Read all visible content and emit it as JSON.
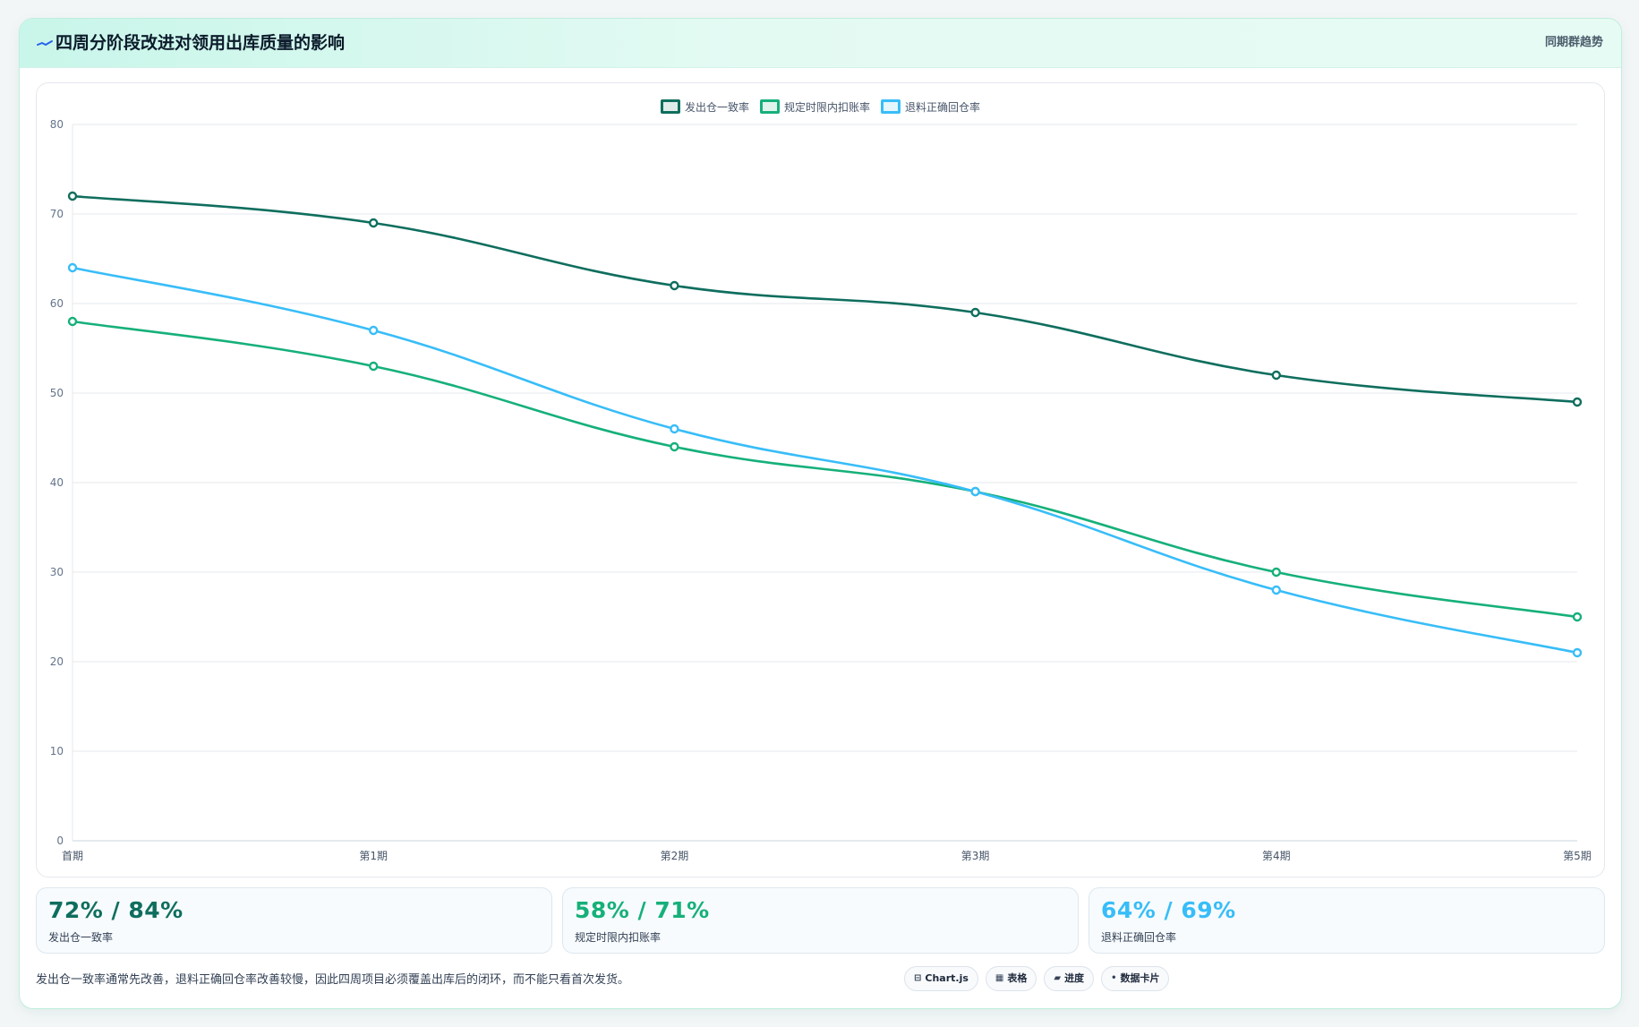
{
  "header": {
    "title": "四周分阶段改进对领用出库质量的影响",
    "subtitle": "同期群趋势",
    "icon": "trend-line-icon"
  },
  "colors": {
    "dark_green": "#0f6e5e",
    "green": "#16b07a",
    "sky": "#38bdf8"
  },
  "chart_data": {
    "type": "line",
    "categories": [
      "首期",
      "第1期",
      "第2期",
      "第3期",
      "第4期",
      "第5期"
    ],
    "series": [
      {
        "name": "发出仓一致率",
        "color": "#0f6e5e",
        "values": [
          72,
          69,
          62,
          59,
          52,
          49
        ]
      },
      {
        "name": "规定时限内扣账率",
        "color": "#16b07a",
        "values": [
          58,
          53,
          44,
          39,
          30,
          25
        ]
      },
      {
        "name": "退料正确回仓率",
        "color": "#38bdf8",
        "values": [
          64,
          57,
          46,
          39,
          28,
          21
        ]
      }
    ],
    "ylim": [
      0,
      80
    ],
    "yticks": [
      "0",
      "10",
      "20",
      "30",
      "40",
      "50",
      "60",
      "70",
      "80"
    ],
    "grid": true,
    "legend": "top-center",
    "smooth": true
  },
  "stats": [
    {
      "value": "72% / 84%",
      "label": "发出仓一致率",
      "color": "#0f6e5e"
    },
    {
      "value": "58% / 71%",
      "label": "规定时限内扣账率",
      "color": "#16b07a"
    },
    {
      "value": "64% / 69%",
      "label": "退料正确回仓率",
      "color": "#38bdf8"
    }
  ],
  "footnote": "发出仓一致率通常先改善，退料正确回仓率改善较慢，因此四周项目必须覆盖出库后的闭环，而不能只看首次发货。",
  "chips": [
    {
      "glyph": "⊟",
      "label": "Chart.js",
      "icon": "chart-icon"
    },
    {
      "glyph": "▦",
      "label": "表格",
      "icon": "table-icon"
    },
    {
      "glyph": "▰",
      "label": "进度",
      "icon": "progress-icon"
    },
    {
      "glyph": "•",
      "label": "数据卡片",
      "icon": "card-icon"
    }
  ]
}
